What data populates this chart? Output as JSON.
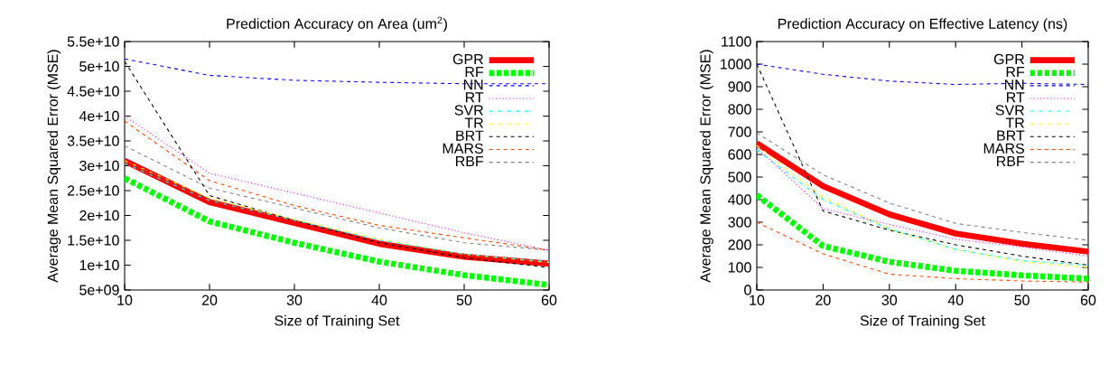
{
  "chart_data": [
    {
      "type": "line",
      "title": "Prediction Accuracy on Area (um$^{2}$)",
      "xlabel": "Size of Training Set",
      "ylabel": "Average Mean Squared Error (MSE)",
      "x": [
        10,
        20,
        30,
        40,
        50,
        60
      ],
      "xlim": [
        10,
        60
      ],
      "xticks": [
        10,
        20,
        30,
        40,
        50,
        60
      ],
      "ylim": [
        5000000000.0,
        55000000000.0
      ],
      "yticks": [
        {
          "value": 5000000000.0,
          "label": "5e+09"
        },
        {
          "value": 10000000000.0,
          "label": "1e+10"
        },
        {
          "value": 15000000000.0,
          "label": "1.5e+10"
        },
        {
          "value": 20000000000.0,
          "label": "2e+10"
        },
        {
          "value": 25000000000.0,
          "label": "2.5e+10"
        },
        {
          "value": 30000000000.0,
          "label": "3e+10"
        },
        {
          "value": 35000000000.0,
          "label": "3.5e+10"
        },
        {
          "value": 40000000000.0,
          "label": "4e+10"
        },
        {
          "value": 45000000000.0,
          "label": "4.5e+10"
        },
        {
          "value": 50000000000.0,
          "label": "5e+10"
        },
        {
          "value": 55000000000.0,
          "label": "5.5e+10"
        }
      ],
      "legend": "top right",
      "grid": false,
      "series": [
        {
          "name": "GPR",
          "color": "#ff0000",
          "line_style": "solid",
          "values": [
            31000000000.0,
            22700000000.0,
            18500000000.0,
            14300000000.0,
            11700000000.0,
            10300000000.0
          ]
        },
        {
          "name": "RF",
          "color": "#00ff00",
          "line_style": "dashed",
          "values": [
            27500000000.0,
            18800000000.0,
            14500000000.0,
            10700000000.0,
            8000000000.0,
            6000000000.0
          ]
        },
        {
          "name": "NN",
          "color": "#0000ff",
          "line_style": "dashed",
          "values": [
            51500000000.0,
            48200000000.0,
            47200000000.0,
            46800000000.0,
            46500000000.0,
            46500000000.0
          ]
        },
        {
          "name": "RT",
          "color": "#ff00ff",
          "line_style": "dotted",
          "values": [
            40000000000.0,
            28500000000.0,
            24500000000.0,
            20500000000.0,
            16500000000.0,
            13000000000.0
          ]
        },
        {
          "name": "SVR",
          "color": "#00ffff",
          "line_style": "dashdot",
          "values": [
            30500000000.0,
            23000000000.0,
            19000000000.0,
            15000000000.0,
            12200000000.0,
            10700000000.0
          ]
        },
        {
          "name": "TR",
          "color": "#ffff00",
          "line_style": "dashdot",
          "values": [
            31000000000.0,
            23500000000.0,
            19200000000.0,
            15200000000.0,
            12200000000.0,
            10500000000.0
          ]
        },
        {
          "name": "BRT",
          "color": "#000000",
          "line_style": "dashed",
          "values": [
            51000000000.0,
            24000000000.0,
            19000000000.0,
            14500000000.0,
            11500000000.0,
            9500000000.0
          ]
        },
        {
          "name": "MARS",
          "color": "#ff4500",
          "line_style": "dashed",
          "values": [
            39000000000.0,
            27000000000.0,
            22000000000.0,
            18000000000.0,
            15500000000.0,
            13000000000.0
          ]
        },
        {
          "name": "RBF",
          "color": "#808080",
          "line_style": "dashed",
          "values": [
            34000000000.0,
            25500000000.0,
            21500000000.0,
            17500000000.0,
            14500000000.0,
            13000000000.0
          ]
        }
      ]
    },
    {
      "type": "line",
      "title": "Prediction Accuracy on Effective Latency (ns)",
      "xlabel": "Size of Training Set",
      "ylabel": "Average Mean Squared Error (MSE)",
      "x": [
        10,
        20,
        30,
        40,
        50,
        60
      ],
      "xlim": [
        10,
        60
      ],
      "xticks": [
        10,
        20,
        30,
        40,
        50,
        60
      ],
      "ylim": [
        0,
        1100
      ],
      "yticks": [
        0,
        100,
        200,
        300,
        400,
        500,
        600,
        700,
        800,
        900,
        1000,
        1100
      ],
      "legend": "top right",
      "grid": false,
      "series": [
        {
          "name": "GPR",
          "color": "#ff0000",
          "line_style": "solid",
          "values": [
            650,
            460,
            335,
            250,
            205,
            170
          ]
        },
        {
          "name": "RF",
          "color": "#00ff00",
          "line_style": "dashed",
          "values": [
            420,
            195,
            125,
            85,
            65,
            50
          ]
        },
        {
          "name": "NN",
          "color": "#0000ff",
          "line_style": "dashed",
          "values": [
            1000,
            955,
            925,
            910,
            915,
            910
          ]
        },
        {
          "name": "RT",
          "color": "#ff00ff",
          "line_style": "dotted",
          "values": [
            630,
            360,
            290,
            225,
            190,
            150
          ]
        },
        {
          "name": "SVR",
          "color": "#00ffff",
          "line_style": "dashdot",
          "values": [
            620,
            400,
            270,
            180,
            130,
            110
          ]
        },
        {
          "name": "TR",
          "color": "#ffff00",
          "line_style": "dashdot",
          "values": [
            640,
            410,
            270,
            180,
            125,
            100
          ]
        },
        {
          "name": "BRT",
          "color": "#000000",
          "line_style": "dashed",
          "values": [
            1000,
            350,
            265,
            200,
            150,
            110
          ]
        },
        {
          "name": "MARS",
          "color": "#ff4500",
          "line_style": "dashed",
          "values": [
            300,
            160,
            70,
            50,
            40,
            35
          ]
        },
        {
          "name": "RBF",
          "color": "#808080",
          "line_style": "dashed",
          "values": [
            695,
            510,
            385,
            295,
            255,
            220
          ]
        }
      ]
    }
  ]
}
